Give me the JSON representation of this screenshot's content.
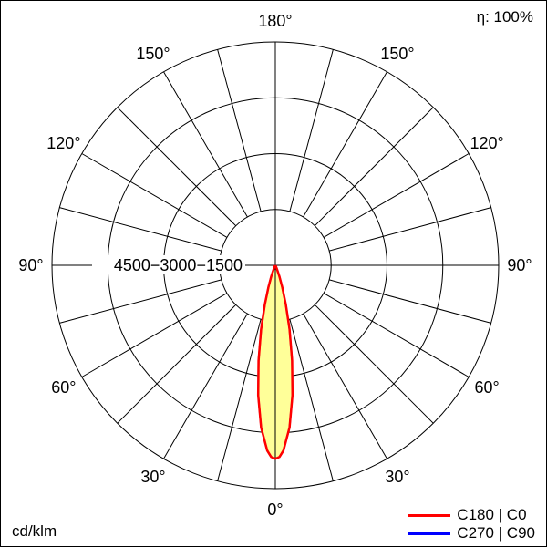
{
  "meta": {
    "efficiency_label": "η: 100%",
    "unit_label": "cd/klm"
  },
  "legend": [
    {
      "label": "C180 | C0",
      "color": "#ff0000"
    },
    {
      "label": "C270 | C90",
      "color": "#0000ff"
    }
  ],
  "chart_data": {
    "type": "line",
    "projection": "polar",
    "legend_position": "bottom-right",
    "grid": true,
    "angle_grid_step_deg": 15,
    "angle_ticks": [
      {
        "deg": 0,
        "label": "0°"
      },
      {
        "deg": 30,
        "label": "30°"
      },
      {
        "deg": 60,
        "label": "60°"
      },
      {
        "deg": 90,
        "label": "90°"
      },
      {
        "deg": 120,
        "label": "120°"
      },
      {
        "deg": 150,
        "label": "150°"
      },
      {
        "deg": 180,
        "label": "180°"
      }
    ],
    "radial_axis": {
      "ticks": [
        1500,
        3000,
        4500
      ],
      "max": 6000,
      "label_text": "4500−3000−1500",
      "unit": "cd/klm"
    },
    "efficiency": "η: 100%",
    "fill_color": "#ffff99",
    "series": [
      {
        "name": "C180 | C0",
        "color": "#ff0000"
      },
      {
        "name": "C270 | C90",
        "color": "#0000ff"
      }
    ],
    "intensity_points": [
      [
        -40,
        0
      ],
      [
        -35,
        2
      ],
      [
        -30,
        12
      ],
      [
        -27.5,
        30
      ],
      [
        -25,
        70
      ],
      [
        -22.5,
        150
      ],
      [
        -20,
        320
      ],
      [
        -17.5,
        620
      ],
      [
        -15,
        1090
      ],
      [
        -12.5,
        1760
      ],
      [
        -10,
        2600
      ],
      [
        -7.5,
        3520
      ],
      [
        -5,
        4370
      ],
      [
        -2.5,
        4980
      ],
      [
        -1.25,
        5150
      ],
      [
        0,
        5200
      ],
      [
        1.25,
        5150
      ],
      [
        2.5,
        4980
      ],
      [
        5,
        4370
      ],
      [
        7.5,
        3520
      ],
      [
        10,
        2600
      ],
      [
        12.5,
        1760
      ],
      [
        15,
        1090
      ],
      [
        17.5,
        620
      ],
      [
        20,
        320
      ],
      [
        22.5,
        150
      ],
      [
        25,
        70
      ],
      [
        27.5,
        30
      ],
      [
        30,
        12
      ],
      [
        35,
        2
      ],
      [
        40,
        0
      ]
    ]
  }
}
